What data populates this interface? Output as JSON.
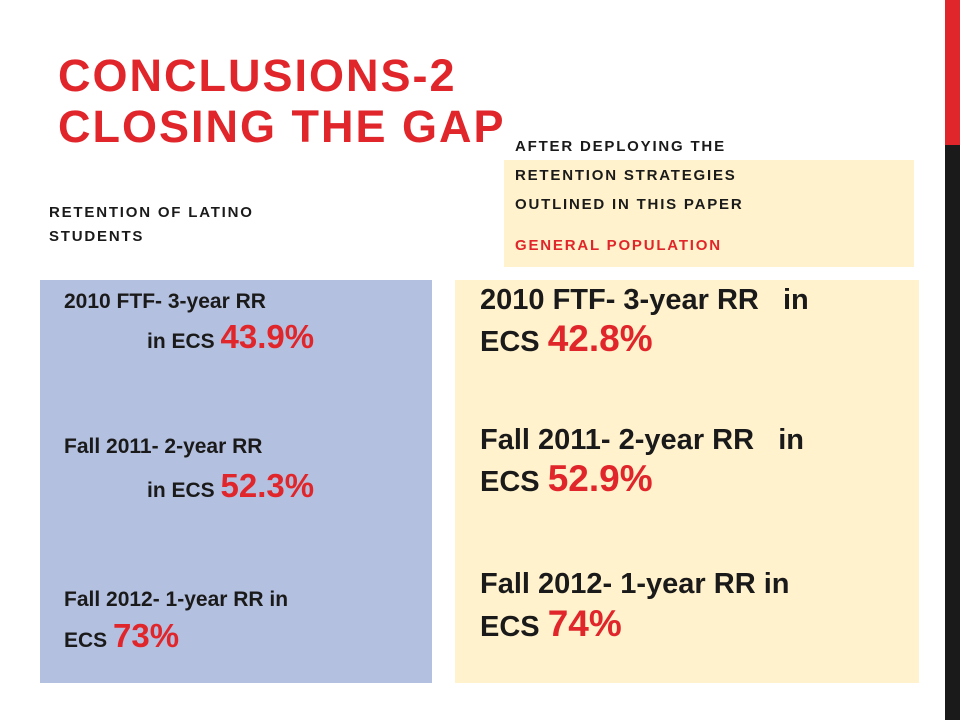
{
  "title": {
    "line1": "CONCLUSIONS-2",
    "line2": "CLOSING THE GAP"
  },
  "left": {
    "heading_line1": "RETENTION OF LATINO",
    "heading_line2": "STUDENTS",
    "items": [
      {
        "line1": "2010 FTF- 3-year RR",
        "line2_prefix": "in ECS ",
        "value": "43.9%"
      },
      {
        "line1": "Fall 2011- 2-year RR",
        "line2_prefix": "in ECS ",
        "value": "52.3%"
      },
      {
        "line1": "Fall 2012- 1-year RR in",
        "line2_prefix": "ECS ",
        "value": "73%"
      }
    ]
  },
  "right": {
    "after_line1": "AFTER DEPLOYING THE",
    "after_line2": "RETENTION STRATEGIES",
    "after_line3": "OUTLINED IN THIS PAPER",
    "general_population": "GENERAL POPULATION",
    "items": [
      {
        "line1": "2010 FTF- 3-year RR   in",
        "line2_prefix": "ECS ",
        "value": "42.8%"
      },
      {
        "line1": "Fall 2011- 2-year RR   in",
        "line2_prefix": "ECS ",
        "value": "52.9%"
      },
      {
        "line1": "Fall 2012- 1-year RR in",
        "line2_prefix": "ECS ",
        "value": "74%"
      }
    ]
  },
  "colors": {
    "accent_red": "#e0262b",
    "left_panel": "#b4c0df",
    "right_panel": "#fff2cc",
    "side_bar_dark": "#1a1a1a"
  }
}
